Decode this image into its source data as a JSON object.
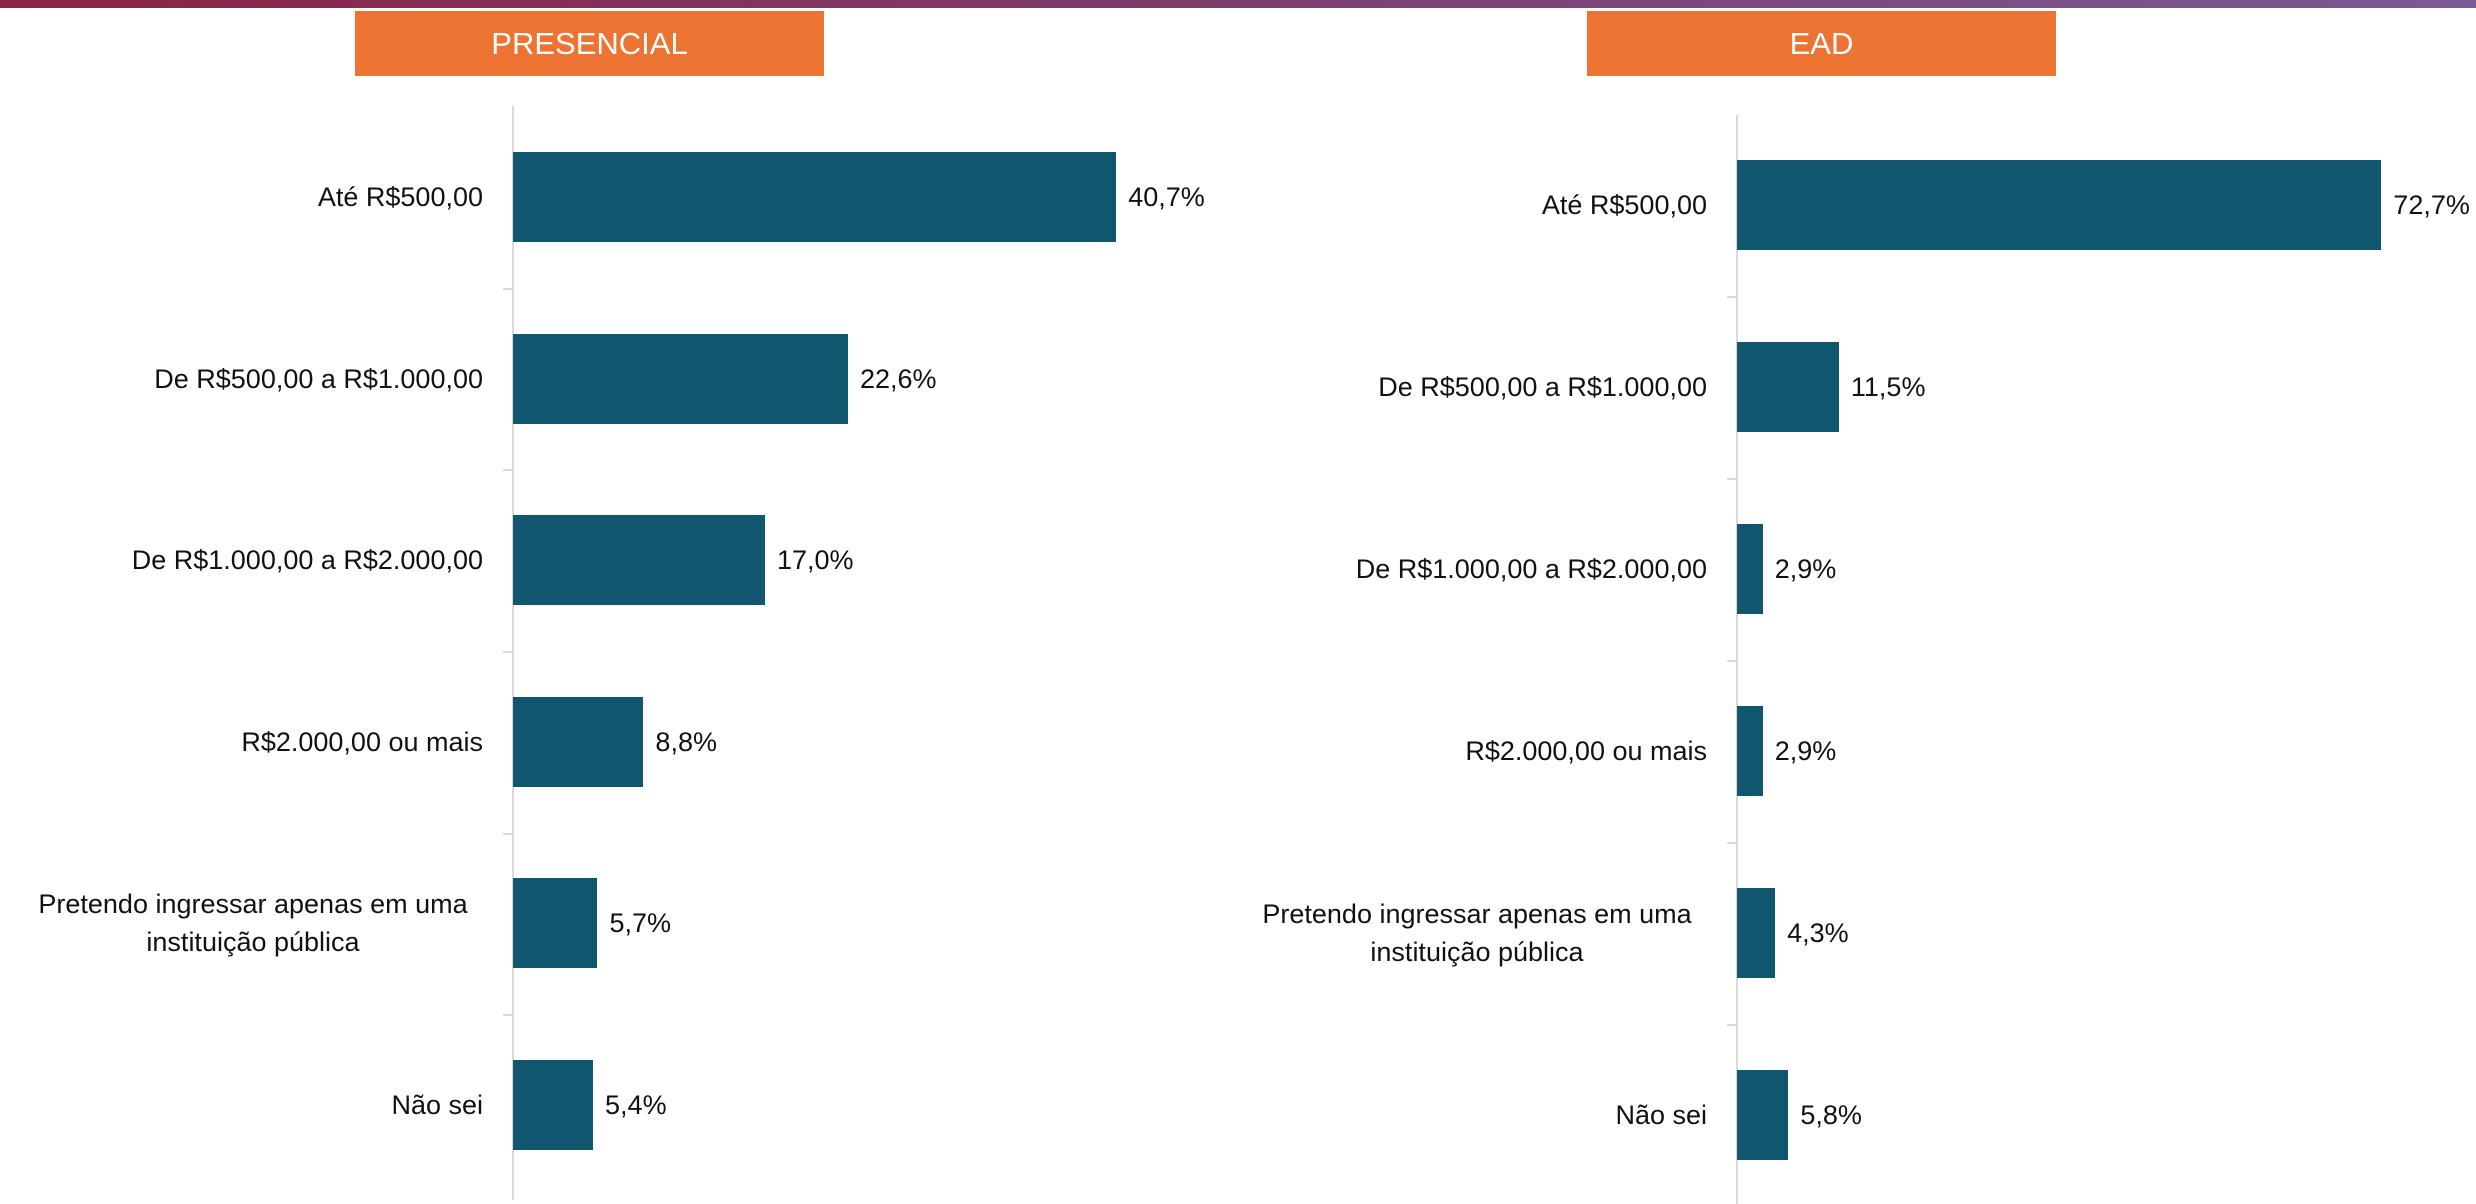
{
  "chart_data": [
    {
      "type": "bar",
      "orientation": "horizontal",
      "title": "PRESENCIAL",
      "categories": [
        "Até R$500,00",
        "De R$500,00 a R$1.000,00",
        "De R$1.000,00 a R$2.000,00",
        "R$2.000,00 ou mais",
        "Pretendo ingressar apenas em uma instituição pública",
        "Não sei"
      ],
      "values": [
        40.7,
        22.6,
        17.0,
        8.8,
        5.7,
        5.4
      ],
      "value_labels": [
        "40,7%",
        "22,6%",
        "17,0%",
        "8,8%",
        "5,7%",
        "5,4%"
      ],
      "color": "#11566f",
      "xlim": [
        0,
        45
      ]
    },
    {
      "type": "bar",
      "orientation": "horizontal",
      "title": "EAD",
      "categories": [
        "Até R$500,00",
        "De R$500,00 a R$1.000,00",
        "De R$1.000,00 a R$2.000,00",
        "R$2.000,00 ou mais",
        "Pretendo ingressar apenas em uma instituição pública",
        "Não sei"
      ],
      "values": [
        72.7,
        11.5,
        2.9,
        2.9,
        4.3,
        5.8
      ],
      "value_labels": [
        "72,7%",
        "11,5%",
        "2,9%",
        "2,9%",
        "4,3%",
        "5,8%"
      ],
      "color": "#11566f",
      "xlim": [
        0,
        80
      ]
    }
  ]
}
